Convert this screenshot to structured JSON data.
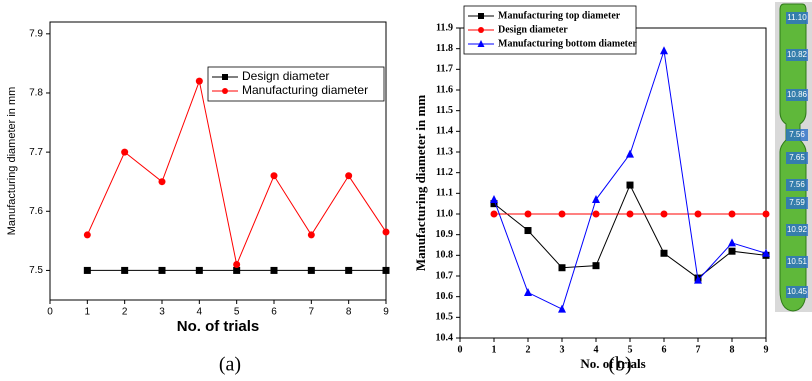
{
  "chart_data": [
    {
      "type": "line",
      "xlabel": "No. of trials",
      "ylabel": "Manufacturing diameter in mm",
      "x": [
        1,
        2,
        3,
        4,
        5,
        6,
        7,
        8,
        9
      ],
      "series": [
        {
          "name": "Design diameter",
          "color": "#000000",
          "marker": "square",
          "values": [
            7.5,
            7.5,
            7.5,
            7.5,
            7.5,
            7.5,
            7.5,
            7.5,
            7.5
          ]
        },
        {
          "name": "Manufacturing diameter",
          "color": "#ff0000",
          "marker": "circle",
          "values": [
            7.56,
            7.7,
            7.65,
            7.82,
            7.51,
            7.66,
            7.56,
            7.66,
            7.565
          ]
        }
      ],
      "xlim": [
        0,
        9
      ],
      "xticks": [
        0,
        1,
        2,
        3,
        4,
        5,
        6,
        7,
        8,
        9
      ],
      "ylim": [
        7.45,
        7.92
      ],
      "yticks": [
        7.5,
        7.6,
        7.7,
        7.8,
        7.9
      ],
      "legend": "top-right"
    },
    {
      "type": "line",
      "xlabel": "No. of trials",
      "ylabel": "Manufacturing diameter in mm",
      "x": [
        1,
        2,
        3,
        4,
        5,
        6,
        7,
        8,
        9
      ],
      "series": [
        {
          "name": "Manufacturing top diameter",
          "color": "#000000",
          "marker": "square",
          "values": [
            11.05,
            10.92,
            10.74,
            10.75,
            11.14,
            10.81,
            10.69,
            10.82,
            10.8
          ]
        },
        {
          "name": "Design diameter",
          "color": "#ff0000",
          "marker": "circle",
          "values": [
            11,
            11,
            11,
            11,
            11,
            11,
            11,
            11,
            11
          ]
        },
        {
          "name": "Manufacturing bottom diameter",
          "color": "#0000ff",
          "marker": "triangle",
          "values": [
            11.07,
            10.62,
            10.54,
            11.07,
            11.29,
            11.79,
            10.68,
            10.86,
            10.81
          ]
        }
      ],
      "xlim": [
        0,
        9
      ],
      "xticks": [
        0,
        1,
        2,
        3,
        4,
        5,
        6,
        7,
        8,
        9
      ],
      "ylim": [
        10.4,
        11.9
      ],
      "yticks": [
        10.4,
        10.5,
        10.6,
        10.7,
        10.8,
        10.9,
        {
          "value": 11,
          "label": "11.0"
        },
        11.1,
        11.2,
        11.3,
        11.4,
        11.5,
        11.6,
        11.7,
        11.8,
        11.9
      ],
      "legend": "top-left"
    }
  ],
  "captions": [
    "(a)",
    "(b)"
  ],
  "part_labels": [
    "11.10",
    "10.82",
    "10.86",
    "7.56",
    "7.65",
    "7.56",
    "7.59",
    "10.92",
    "10.51",
    "10.45"
  ]
}
